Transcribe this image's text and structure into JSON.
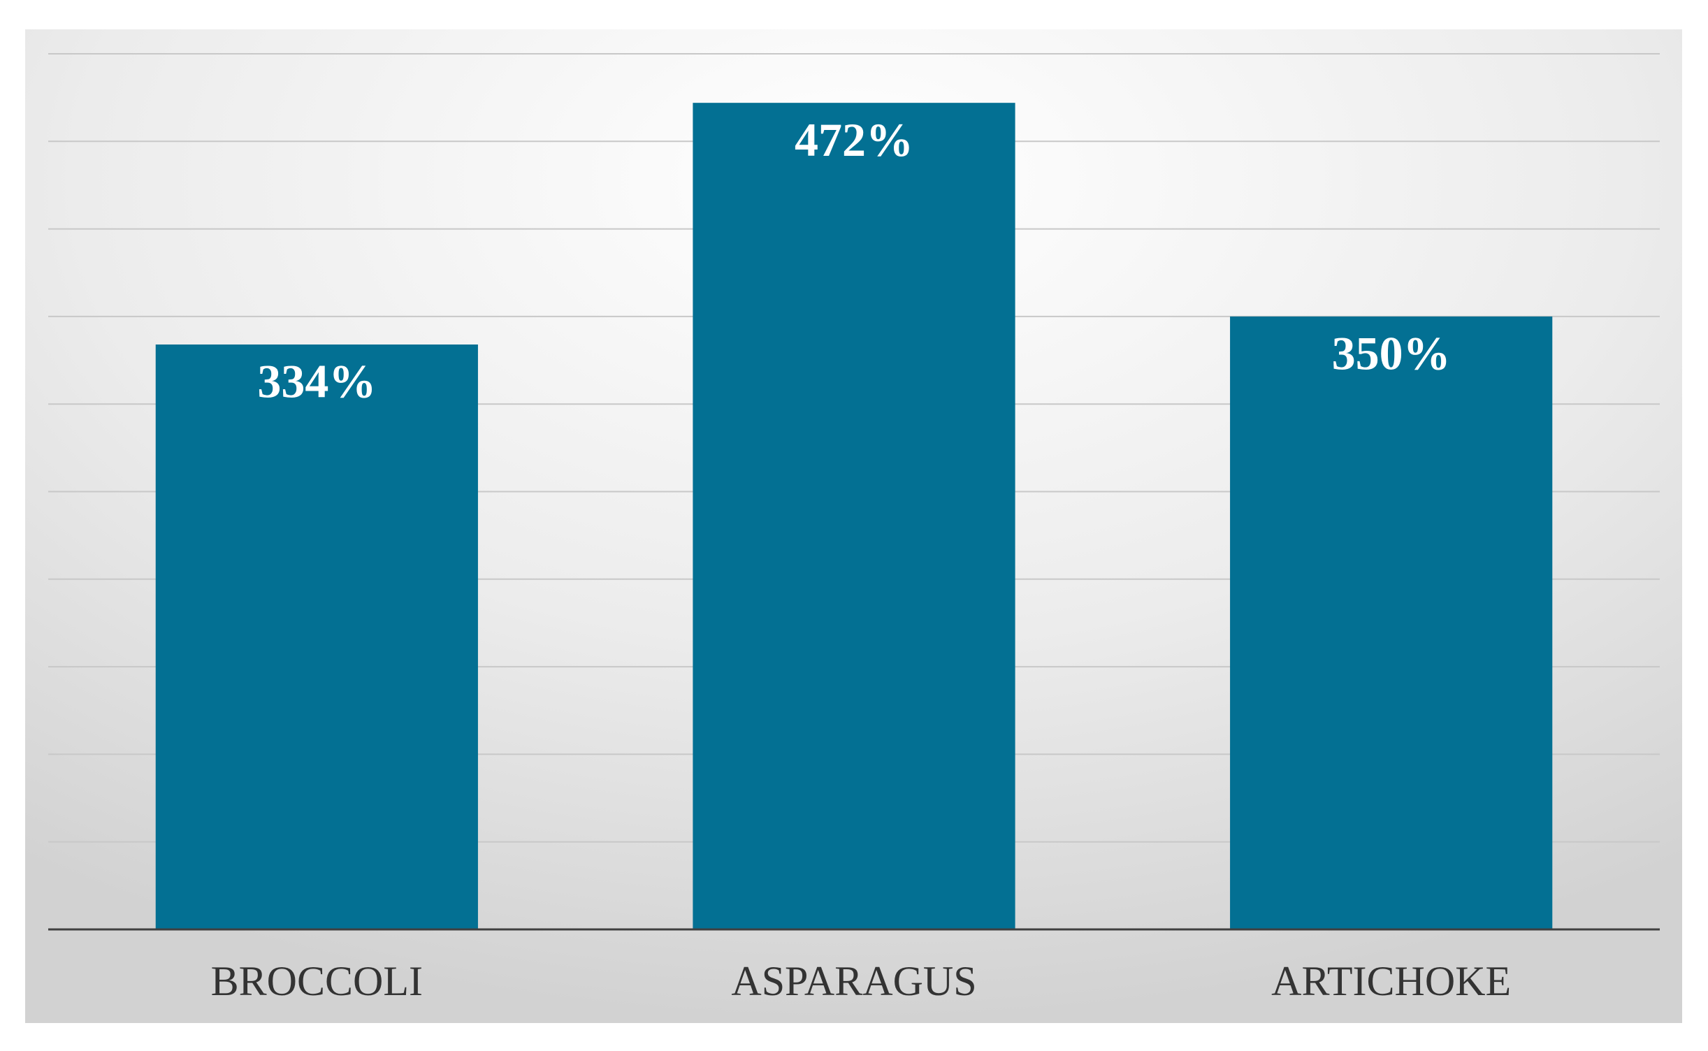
{
  "chart_data": {
    "type": "bar",
    "categories": [
      "BROCCOLI",
      "ASPARAGUS",
      "ARTICHOKE"
    ],
    "values": [
      334,
      472,
      350
    ],
    "value_labels": [
      "334%",
      "472%",
      "350%"
    ],
    "color": "#037093",
    "ylim": [
      0,
      500
    ],
    "yticks": [
      0,
      50,
      100,
      150,
      200,
      250,
      300,
      350,
      400,
      450,
      500
    ],
    "grid": true
  }
}
